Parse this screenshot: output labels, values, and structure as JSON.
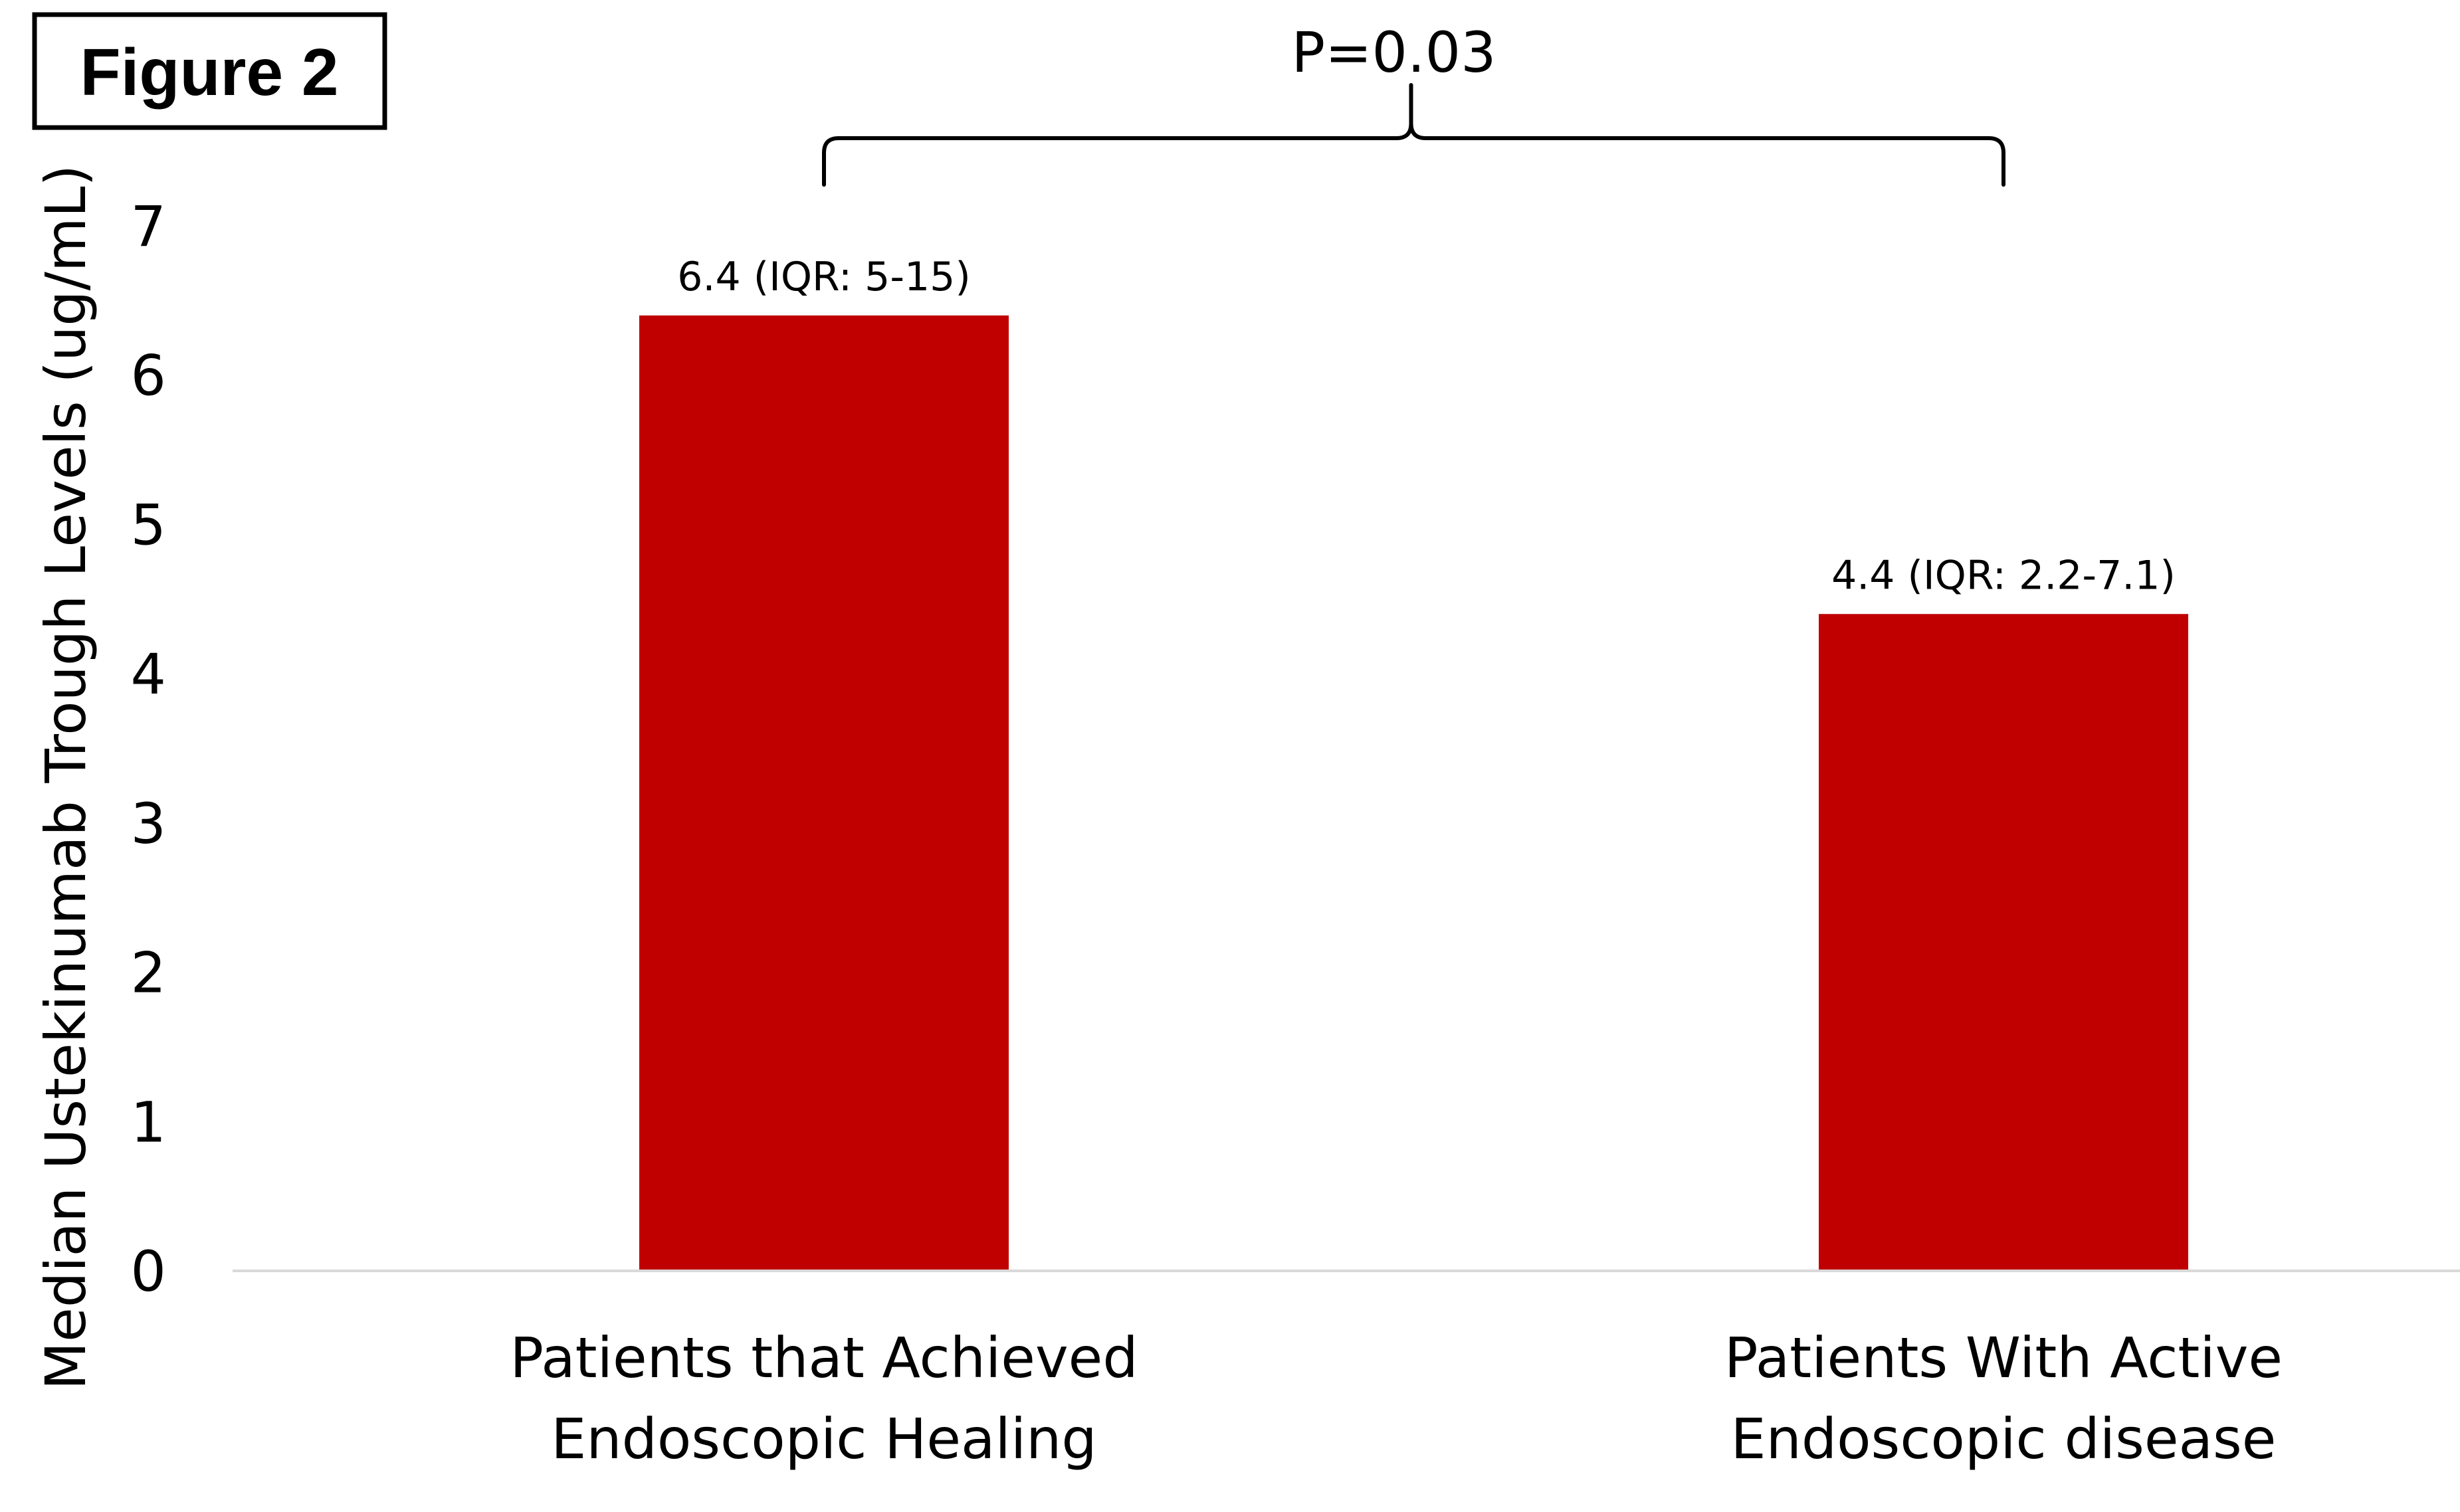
{
  "figure_label": "Figure 2",
  "significance": {
    "text": "P=0.03"
  },
  "colors": {
    "bar": "#c00000",
    "axis": "#d9d9d9",
    "text": "#000000"
  },
  "chart_data": {
    "type": "bar",
    "title": "",
    "ylabel": "Median Ustekinumab Trough Levels (ug/mL)",
    "xlabel": "",
    "ylim": [
      0,
      7
    ],
    "yticks": [
      0,
      1,
      2,
      3,
      4,
      5,
      6,
      7
    ],
    "grid": false,
    "categories": [
      [
        "Patients that Achieved",
        "Endoscopic Healing"
      ],
      [
        "Patients With Active",
        "Endoscopic disease"
      ]
    ],
    "values": [
      6.4,
      4.4
    ],
    "data_labels": [
      "6.4 (IQR: 5-15)",
      "4.4 (IQR: 2.2-7.1)"
    ]
  }
}
